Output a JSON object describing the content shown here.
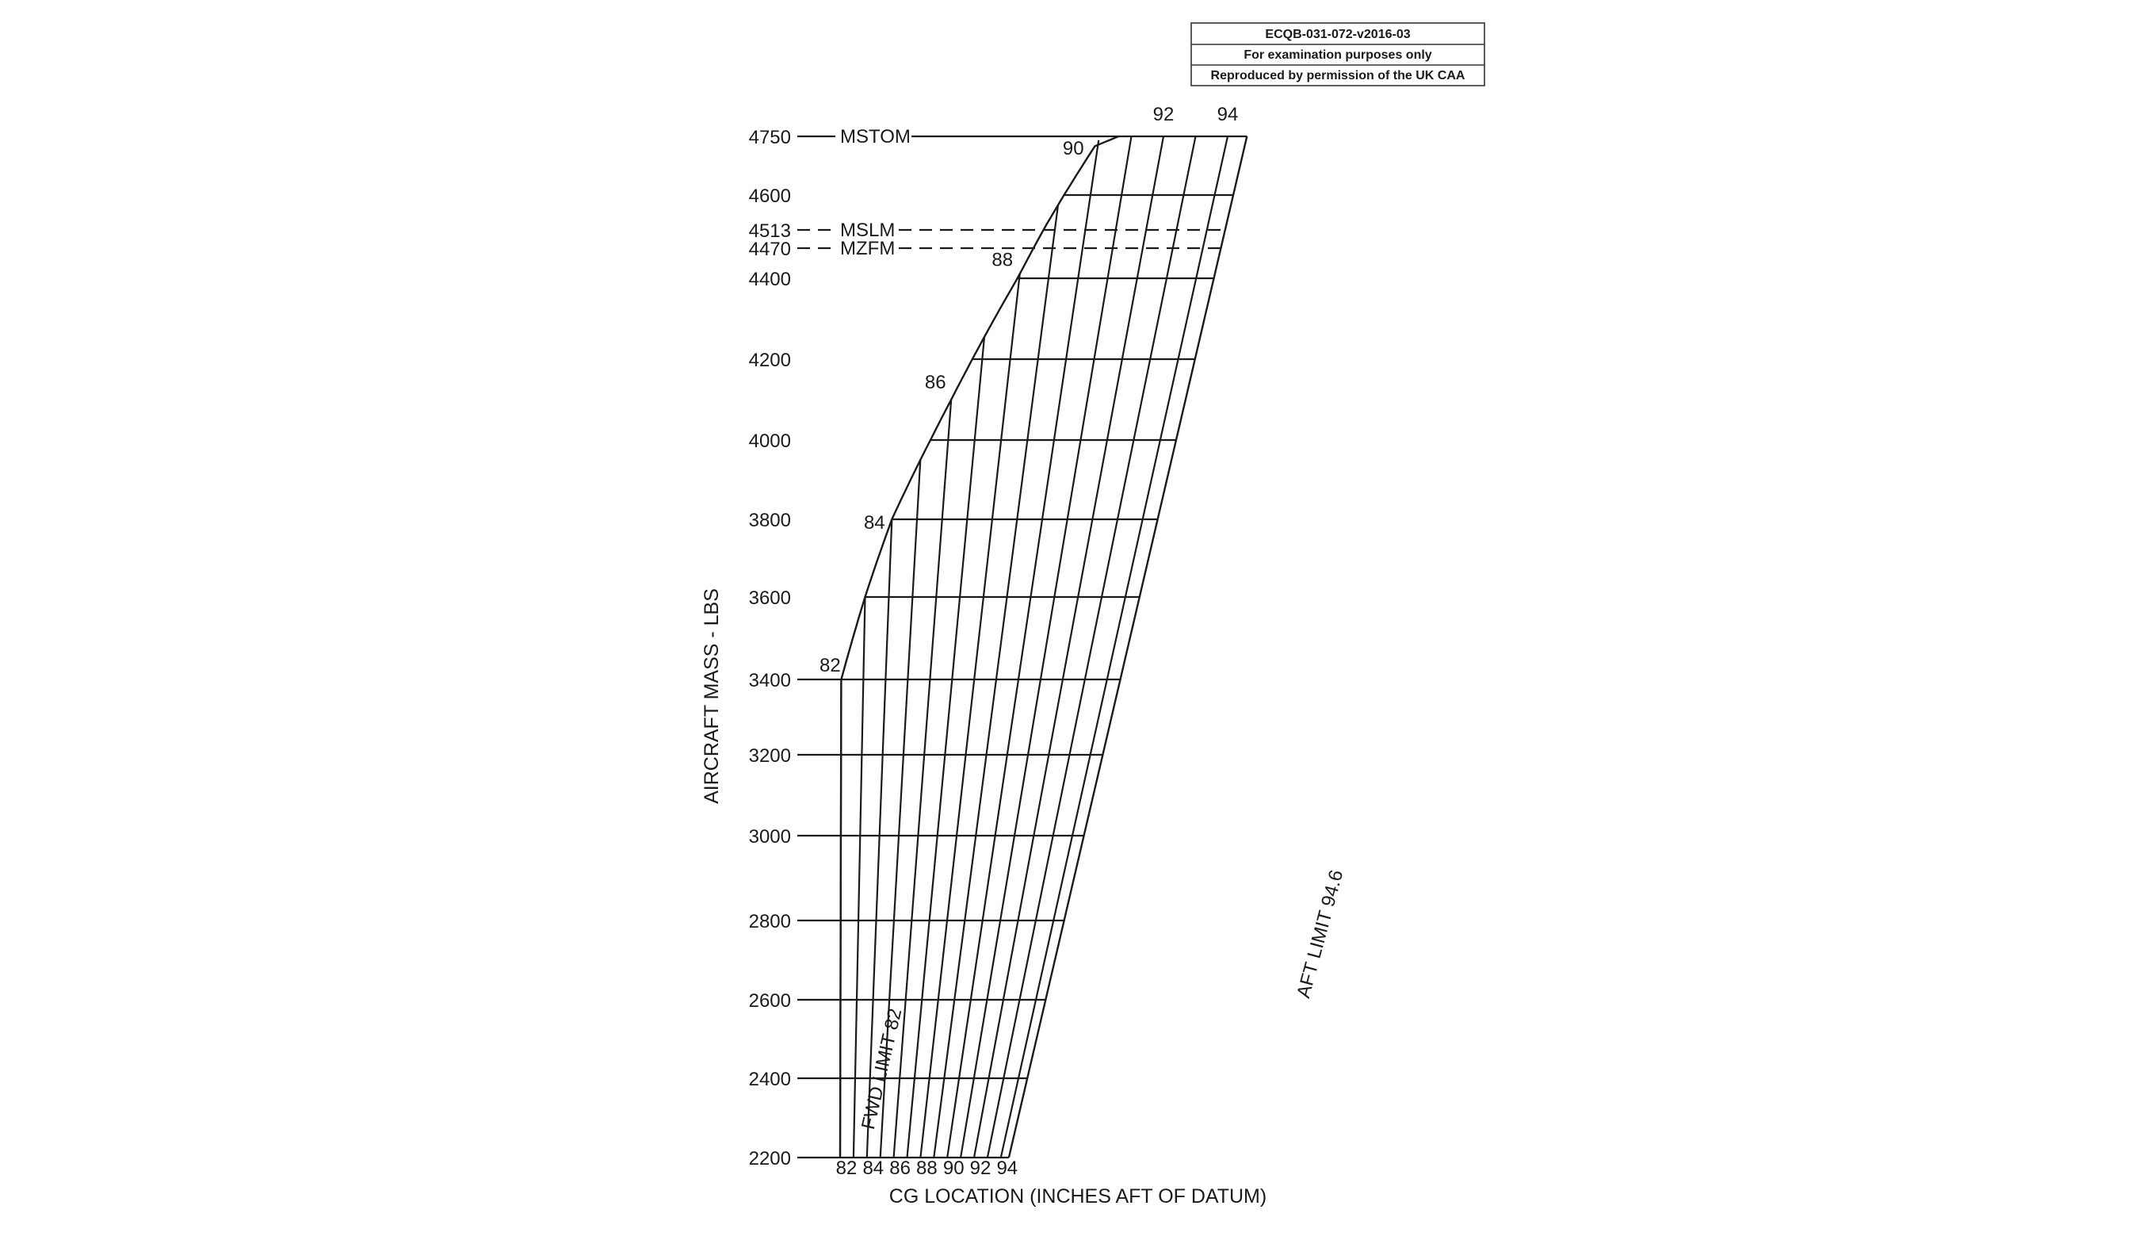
{
  "stamp": {
    "line1": "ECQB-031-072-v2016-03",
    "line2": "For examination purposes only",
    "line3": "Reproduced by permission of the UK CAA"
  },
  "chart_data": {
    "type": "line",
    "xlabel": "CG LOCATION (INCHES AFT OF DATUM)",
    "ylabel": "AIRCRAFT MASS - LBS",
    "ylim": [
      2200,
      4750
    ],
    "y_ticks": [
      2200,
      2400,
      2600,
      2800,
      3000,
      3200,
      3400,
      3600,
      3800,
      4000,
      4200,
      4400,
      4470,
      4513,
      4600,
      4750
    ],
    "y_tick_labels": [
      "2200",
      "2400",
      "2600",
      "2800",
      "3000",
      "3200",
      "3400",
      "3600",
      "3800",
      "4000",
      "4200",
      "4400",
      "4470",
      "4513",
      "4600",
      "4750"
    ],
    "x_ticks": [
      82,
      84,
      86,
      88,
      90,
      92,
      94
    ],
    "x_tick_labels": [
      "82",
      "84",
      "86",
      "88",
      "90",
      "92",
      "94"
    ],
    "cg_lines": [
      82,
      83,
      84,
      85,
      86,
      87,
      88,
      89,
      90,
      91,
      92,
      93,
      94,
      94.6
    ],
    "envelope_forward_boundary": {
      "label": "FWD LIMIT 82",
      "points": [
        [
          82,
          2200
        ],
        [
          82,
          3400
        ],
        [
          84,
          3800
        ],
        [
          86,
          4100
        ],
        [
          88,
          4410
        ],
        [
          90,
          4740
        ],
        [
          90.6,
          4750
        ]
      ]
    },
    "aft_limit": {
      "label": "AFT LIMIT 94.6",
      "value": 94.6
    },
    "upper_labels": [
      {
        "text": "82",
        "cg": 82,
        "mass": 3400
      },
      {
        "text": "84",
        "cg": 84,
        "mass": 3800
      },
      {
        "text": "86",
        "cg": 86,
        "mass": 4100
      },
      {
        "text": "88",
        "cg": 88,
        "mass": 4410
      },
      {
        "text": "90",
        "cg": 90,
        "mass": 4740
      },
      {
        "text": "92",
        "cg": 92,
        "mass": 4750
      },
      {
        "text": "94",
        "cg": 94,
        "mass": 4750
      }
    ],
    "mass_limits": [
      {
        "name": "MSTOM",
        "value": 4750,
        "style": "solid"
      },
      {
        "name": "MSLM",
        "value": 4513,
        "style": "dashed"
      },
      {
        "name": "MZFM",
        "value": 4470,
        "style": "dashed"
      }
    ],
    "grid": true
  }
}
